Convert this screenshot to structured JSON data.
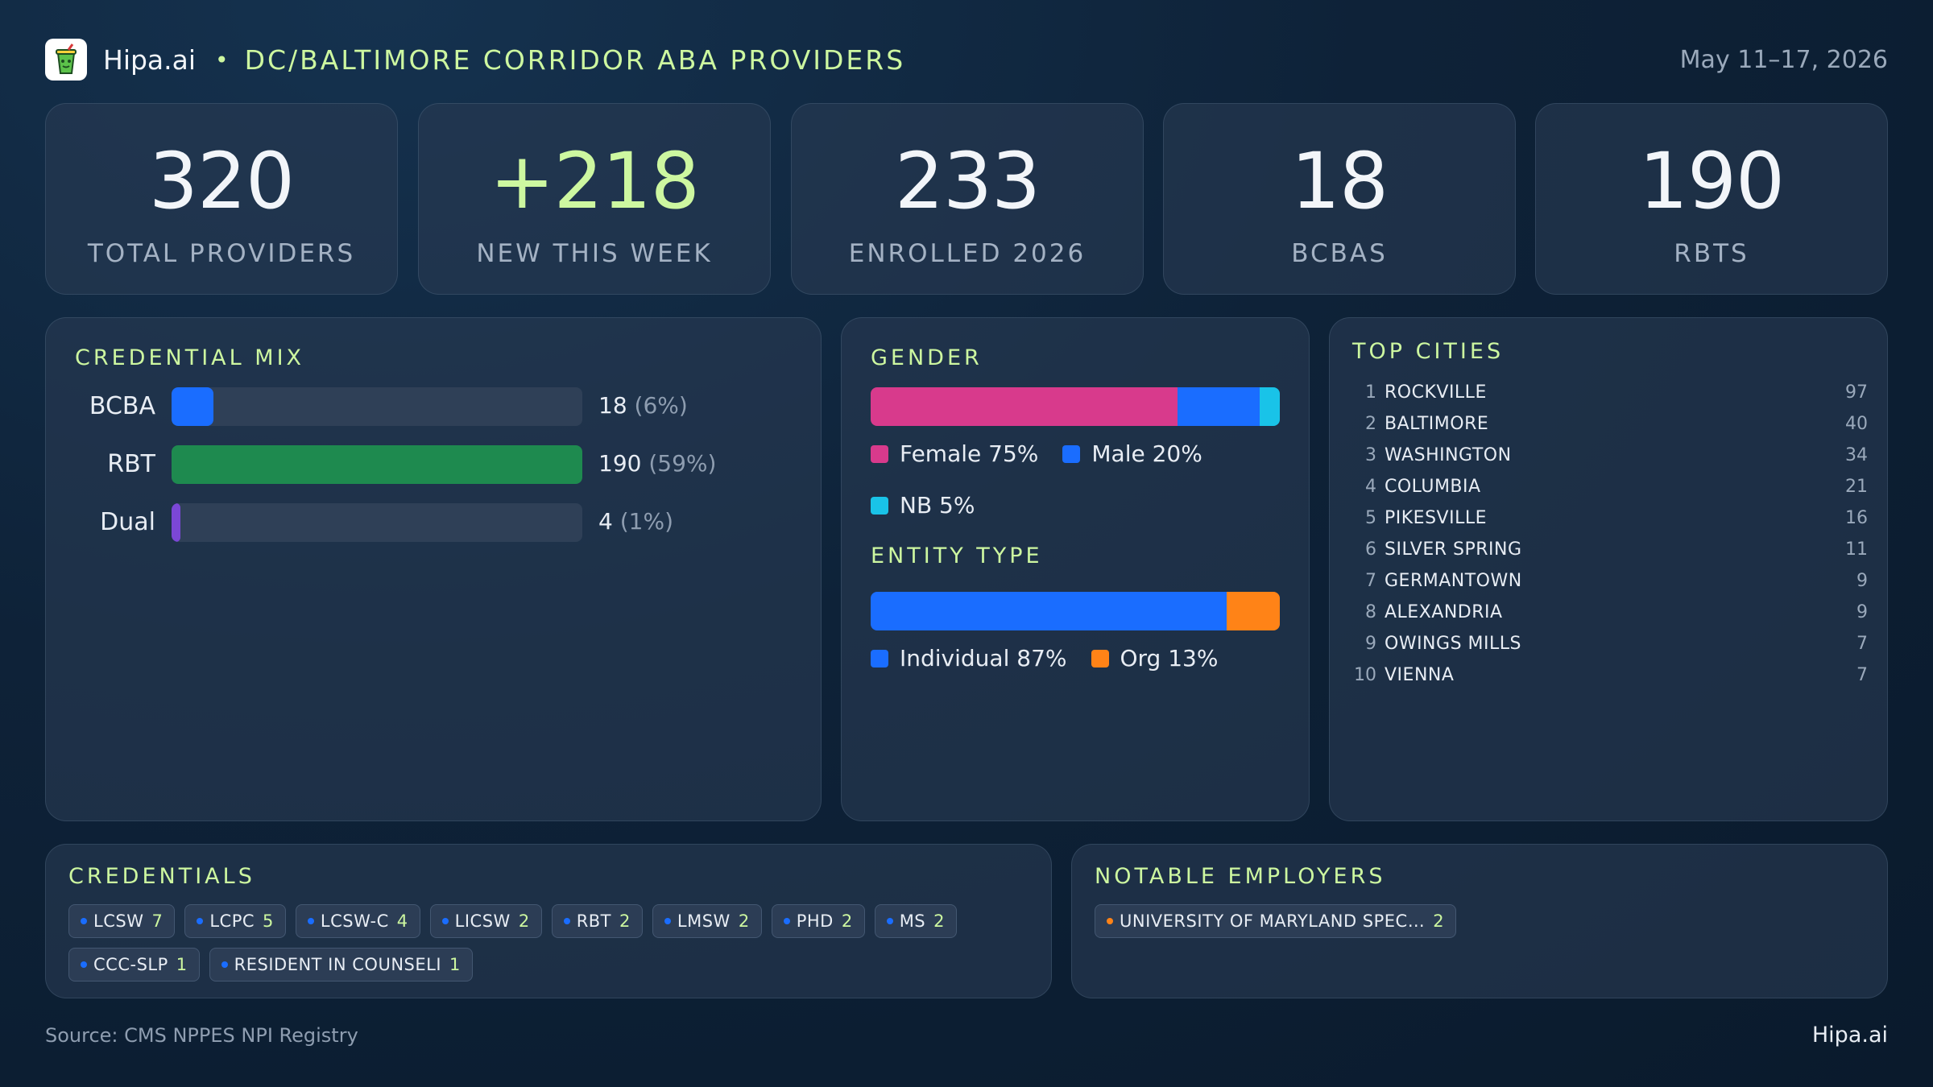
{
  "header": {
    "logo_icon": "drink-cup-icon",
    "brand": "Hipa.ai",
    "separator": "•",
    "title": "DC/BALTIMORE CORRIDOR ABA PROVIDERS",
    "date_range": "May 11–17, 2026"
  },
  "kpis": [
    {
      "value": "320",
      "label": "TOTAL PROVIDERS"
    },
    {
      "value": "+218",
      "label": "NEW THIS WEEK"
    },
    {
      "value": "233",
      "label": "ENROLLED 2026"
    },
    {
      "value": "18",
      "label": "BCBAS"
    },
    {
      "value": "190",
      "label": "RBTS"
    }
  ],
  "chart_data": [
    {
      "type": "bar",
      "title": "CREDENTIAL MIX",
      "orientation": "horizontal",
      "categories": [
        "BCBA",
        "RBT",
        "Dual"
      ],
      "values": [
        18,
        190,
        4
      ],
      "value_labels": [
        "18",
        "190",
        "4"
      ],
      "percent_labels": [
        "(6%)",
        "(59%)",
        "(1%)"
      ],
      "percents": [
        6,
        59,
        1
      ],
      "colors": [
        "#1a6dff",
        "#1e8a4f",
        "#7b47d6"
      ]
    },
    {
      "type": "bar",
      "stacked": true,
      "title": "GENDER",
      "categories": [
        "Female",
        "Male",
        "NB"
      ],
      "values": [
        75,
        20,
        5
      ],
      "legend_labels": [
        "Female 75%",
        "Male 20%",
        "NB 5%"
      ],
      "colors": [
        "#d83a8c",
        "#1a6dff",
        "#19c3e8"
      ]
    },
    {
      "type": "bar",
      "stacked": true,
      "title": "ENTITY TYPE",
      "categories": [
        "Individual",
        "Org"
      ],
      "values": [
        87,
        13
      ],
      "legend_labels": [
        "Individual 87%",
        "Org 13%"
      ],
      "colors": [
        "#1a6dff",
        "#ff8317"
      ]
    },
    {
      "type": "table",
      "title": "TOP CITIES",
      "rows": [
        {
          "rank": "1",
          "name": "ROCKVILLE",
          "count": "97"
        },
        {
          "rank": "2",
          "name": "BALTIMORE",
          "count": "40"
        },
        {
          "rank": "3",
          "name": "WASHINGTON",
          "count": "34"
        },
        {
          "rank": "4",
          "name": "COLUMBIA",
          "count": "21"
        },
        {
          "rank": "5",
          "name": "PIKESVILLE",
          "count": "16"
        },
        {
          "rank": "6",
          "name": "SILVER SPRING",
          "count": "11"
        },
        {
          "rank": "7",
          "name": "GERMANTOWN",
          "count": "9"
        },
        {
          "rank": "8",
          "name": "ALEXANDRIA",
          "count": "9"
        },
        {
          "rank": "9",
          "name": "OWINGS MILLS",
          "count": "7"
        },
        {
          "rank": "10",
          "name": "VIENNA",
          "count": "7"
        }
      ]
    }
  ],
  "credentials": {
    "title": "CREDENTIALS",
    "dot_color": "#1a6dff",
    "chips": [
      {
        "name": "LCSW",
        "count": "7"
      },
      {
        "name": "LCPC",
        "count": "5"
      },
      {
        "name": "LCSW-C",
        "count": "4"
      },
      {
        "name": "LICSW",
        "count": "2"
      },
      {
        "name": "RBT",
        "count": "2"
      },
      {
        "name": "LMSW",
        "count": "2"
      },
      {
        "name": "PHD",
        "count": "2"
      },
      {
        "name": "MS",
        "count": "2"
      },
      {
        "name": "CCC-SLP",
        "count": "1"
      },
      {
        "name": "RESIDENT IN COUNSELI",
        "count": "1"
      }
    ]
  },
  "employers": {
    "title": "NOTABLE EMPLOYERS",
    "dot_color": "#ff8317",
    "chips": [
      {
        "name": "UNIVERSITY OF MARYLAND SPEC…",
        "count": "2"
      }
    ]
  },
  "footer": {
    "source": "Source: CMS NPPES NPI Registry",
    "brand": "Hipa.ai"
  }
}
